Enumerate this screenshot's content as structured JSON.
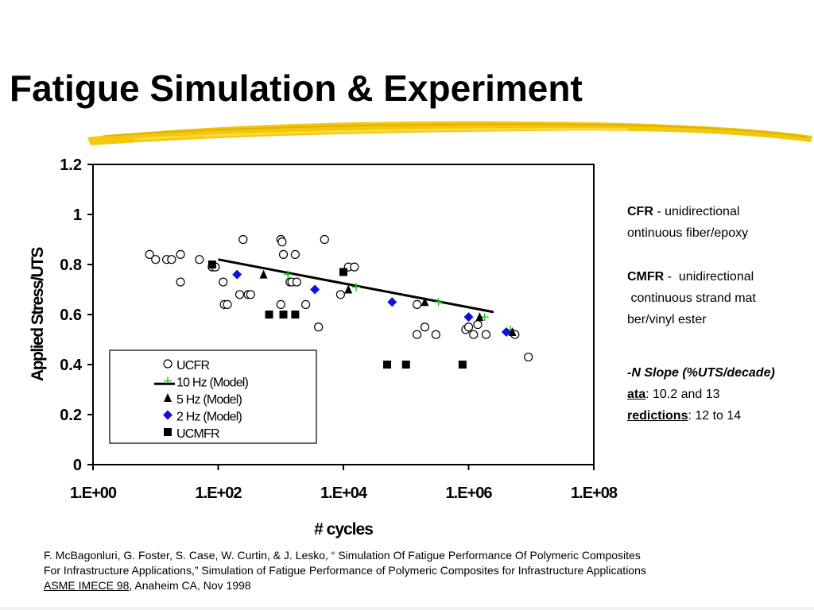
{
  "slide": {
    "title": "Fatigue Simulation & Experiment",
    "accent_color": "#f2c400"
  },
  "notes": {
    "ucfr_label": "CFR",
    "ucfr_sep": " - ",
    "ucfr_line1": "unidirectional",
    "ucfr_line2": "ontinuous fiber/epoxy",
    "ucmfr_label": "CMFR",
    "ucmfr_sep": " -  ",
    "ucmfr_line1": "unidirectional",
    "ucmfr_line2": " continuous strand mat",
    "ucmfr_line3": "ber/vinyl ester",
    "slope_heading": "-N Slope (%UTS/decade)",
    "data_label": "ata",
    "data_value": ": 10.2 and 13",
    "pred_label": "redictions",
    "pred_value": ": 12 to 14"
  },
  "citation": {
    "line1": "F. McBagonluri, G. Foster, S. Case,  W. Curtin, & J. Lesko, “ Simulation Of Fatigue Performance Of Polymeric Composites",
    "line2": "For Infrastructure Applications,” Simulation of Fatigue Performance of Polymeric Composites for Infrastructure Applications",
    "line3_link": "ASME IMECE 98",
    "line3_rest": ", Anaheim CA, Nov 1998"
  },
  "chart_data": {
    "type": "scatter",
    "xlabel": "# cycles",
    "ylabel": "Applied Stress/UTS",
    "x_scale": "log",
    "xlim": [
      1,
      100000000
    ],
    "ylim": [
      0,
      1.2
    ],
    "x_ticks": [
      1,
      100,
      10000,
      1000000,
      100000000
    ],
    "x_tick_labels": [
      "1.E+00",
      "1.E+02",
      "1.E+04",
      "1.E+06",
      "1.E+08"
    ],
    "y_ticks": [
      0,
      0.2,
      0.4,
      0.6,
      0.8,
      1,
      1.2
    ],
    "y_tick_labels": [
      "0",
      "0.2",
      "0.4",
      "0.6",
      "0.8",
      "1",
      "1.2"
    ],
    "grid": false,
    "legend_position": "bottom-left",
    "series": [
      {
        "name": "UCFR",
        "marker": "open-circle",
        "color": "#000000",
        "x": [
          8,
          10,
          15,
          18,
          25,
          25,
          50,
          80,
          90,
          120,
          125,
          140,
          220,
          250,
          300,
          330,
          1000,
          1000,
          1050,
          1100,
          1400,
          1500,
          1700,
          1800,
          2500,
          4000,
          5000,
          9000,
          12000,
          15000,
          150000,
          150000,
          200000,
          300000,
          900000,
          1000000,
          1200000,
          1400000,
          1900000,
          5500000,
          9000000
        ],
        "y": [
          0.84,
          0.82,
          0.82,
          0.82,
          0.84,
          0.73,
          0.82,
          0.79,
          0.79,
          0.73,
          0.64,
          0.64,
          0.68,
          0.9,
          0.68,
          0.68,
          0.64,
          0.9,
          0.89,
          0.84,
          0.73,
          0.73,
          0.84,
          0.73,
          0.64,
          0.55,
          0.9,
          0.68,
          0.79,
          0.79,
          0.64,
          0.52,
          0.55,
          0.52,
          0.54,
          0.55,
          0.52,
          0.56,
          0.52,
          0.52,
          0.43
        ]
      },
      {
        "name": "10 Hz (Model)",
        "marker": "plus",
        "color": "#22cc22",
        "x": [
          1300,
          16000,
          330000,
          1800000,
          4700000
        ],
        "y": [
          0.76,
          0.71,
          0.65,
          0.59,
          0.54
        ]
      },
      {
        "name": "5 Hz (Model)",
        "marker": "filled-triangle",
        "color": "#000000",
        "x": [
          530,
          12000,
          200000,
          1500000,
          5000000
        ],
        "y": [
          0.76,
          0.7,
          0.65,
          0.59,
          0.53
        ]
      },
      {
        "name": "2 Hz (Model)",
        "marker": "filled-diamond",
        "color": "#1010dd",
        "x": [
          200,
          3500,
          60000,
          1000000,
          4000000
        ],
        "y": [
          0.76,
          0.7,
          0.65,
          0.59,
          0.53
        ]
      },
      {
        "name": "UCMFR",
        "marker": "filled-square",
        "color": "#000000",
        "x": [
          80,
          650,
          1100,
          1700,
          10000,
          50000,
          100000,
          800000
        ],
        "y": [
          0.8,
          0.6,
          0.6,
          0.6,
          0.77,
          0.4,
          0.4,
          0.4
        ]
      }
    ],
    "fit_line": {
      "x": [
        100,
        2500000
      ],
      "y": [
        0.82,
        0.61
      ],
      "color": "#000000"
    }
  }
}
